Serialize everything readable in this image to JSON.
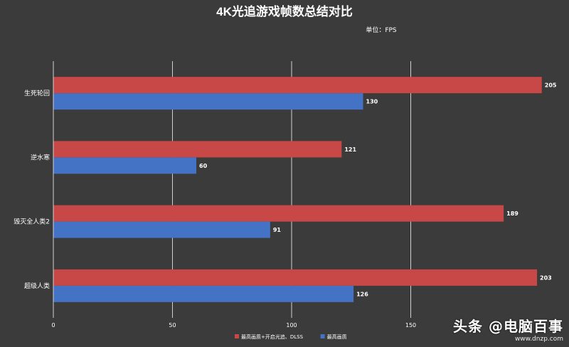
{
  "chart_data": {
    "type": "bar",
    "orientation": "horizontal",
    "title": "4K光追游戏帧数总结对比",
    "subtitle": "单位：FPS",
    "categories": [
      "生死轮回",
      "逆水寒",
      "毁灭全人类2",
      "超级人类"
    ],
    "series": [
      {
        "name": "最高画质+开启光追、DLSS",
        "color": "#c84848",
        "values": [
          205,
          121,
          189,
          203
        ]
      },
      {
        "name": "最高画质",
        "color": "#4472c4",
        "values": [
          130,
          60,
          91,
          126
        ]
      }
    ],
    "xlim": [
      0,
      200
    ],
    "x_ticks": [
      "0",
      "50",
      "100",
      "150"
    ],
    "grid": true,
    "legend_position": "bottom"
  },
  "watermark": {
    "brand": "头条 @电脑百事",
    "site": "www.dnzp.com"
  },
  "colors": {
    "background": "#3b3b3b",
    "text": "#ffffff",
    "grid": "#d0d0d0"
  }
}
